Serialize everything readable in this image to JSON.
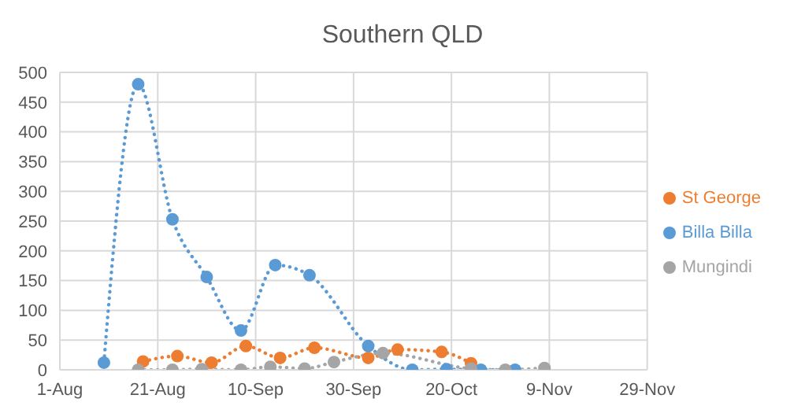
{
  "chart_data": {
    "type": "line",
    "title": "Southern QLD",
    "series": [
      {
        "name": "St George",
        "color": "#ed7d31",
        "x": [
          "--08-18",
          "--08-25",
          "--09-01",
          "--09-08",
          "--09-15",
          "--09-22",
          "--10-03",
          "--10-09",
          "--10-18",
          "--10-24"
        ],
        "values": [
          14,
          23,
          12,
          40,
          20,
          37,
          20,
          34,
          30,
          11
        ]
      },
      {
        "name": "Billa Billa",
        "color": "#5b9bd5",
        "x": [
          "--08-10",
          "--08-17",
          "--08-24",
          "--08-31",
          "--09-07",
          "--09-14",
          "--09-21",
          "--10-03",
          "--10-12",
          "--10-19",
          "--10-26",
          "--11-02"
        ],
        "values": [
          12,
          480,
          253,
          156,
          66,
          176,
          159,
          40,
          0,
          1,
          0,
          0
        ]
      },
      {
        "name": "Mungindi",
        "color": "#a5a5a5",
        "x": [
          "--08-17",
          "--08-24",
          "--08-30",
          "--09-07",
          "--09-13",
          "--09-20",
          "--09-26",
          "--10-06",
          "--10-24",
          "--10-31",
          "--11-08"
        ],
        "values": [
          0,
          0,
          1,
          0,
          5,
          2,
          13,
          28,
          2,
          0,
          3
        ]
      }
    ],
    "xlim": [
      "--08-01",
      "--11-29"
    ],
    "xticks": [
      {
        "value": "--08-01",
        "label": "1-Aug"
      },
      {
        "value": "--08-21",
        "label": "21-Aug"
      },
      {
        "value": "--09-10",
        "label": "10-Sep"
      },
      {
        "value": "--09-30",
        "label": "30-Sep"
      },
      {
        "value": "--10-20",
        "label": "20-Oct"
      },
      {
        "value": "--11-09",
        "label": "9-Nov"
      },
      {
        "value": "--11-29",
        "label": "29-Nov"
      }
    ],
    "ylim": [
      0,
      500
    ],
    "yticks": [
      0,
      50,
      100,
      150,
      200,
      250,
      300,
      350,
      400,
      450,
      500
    ],
    "grid": true,
    "legend": "right",
    "marker": "circle",
    "line_style": "dotted"
  }
}
